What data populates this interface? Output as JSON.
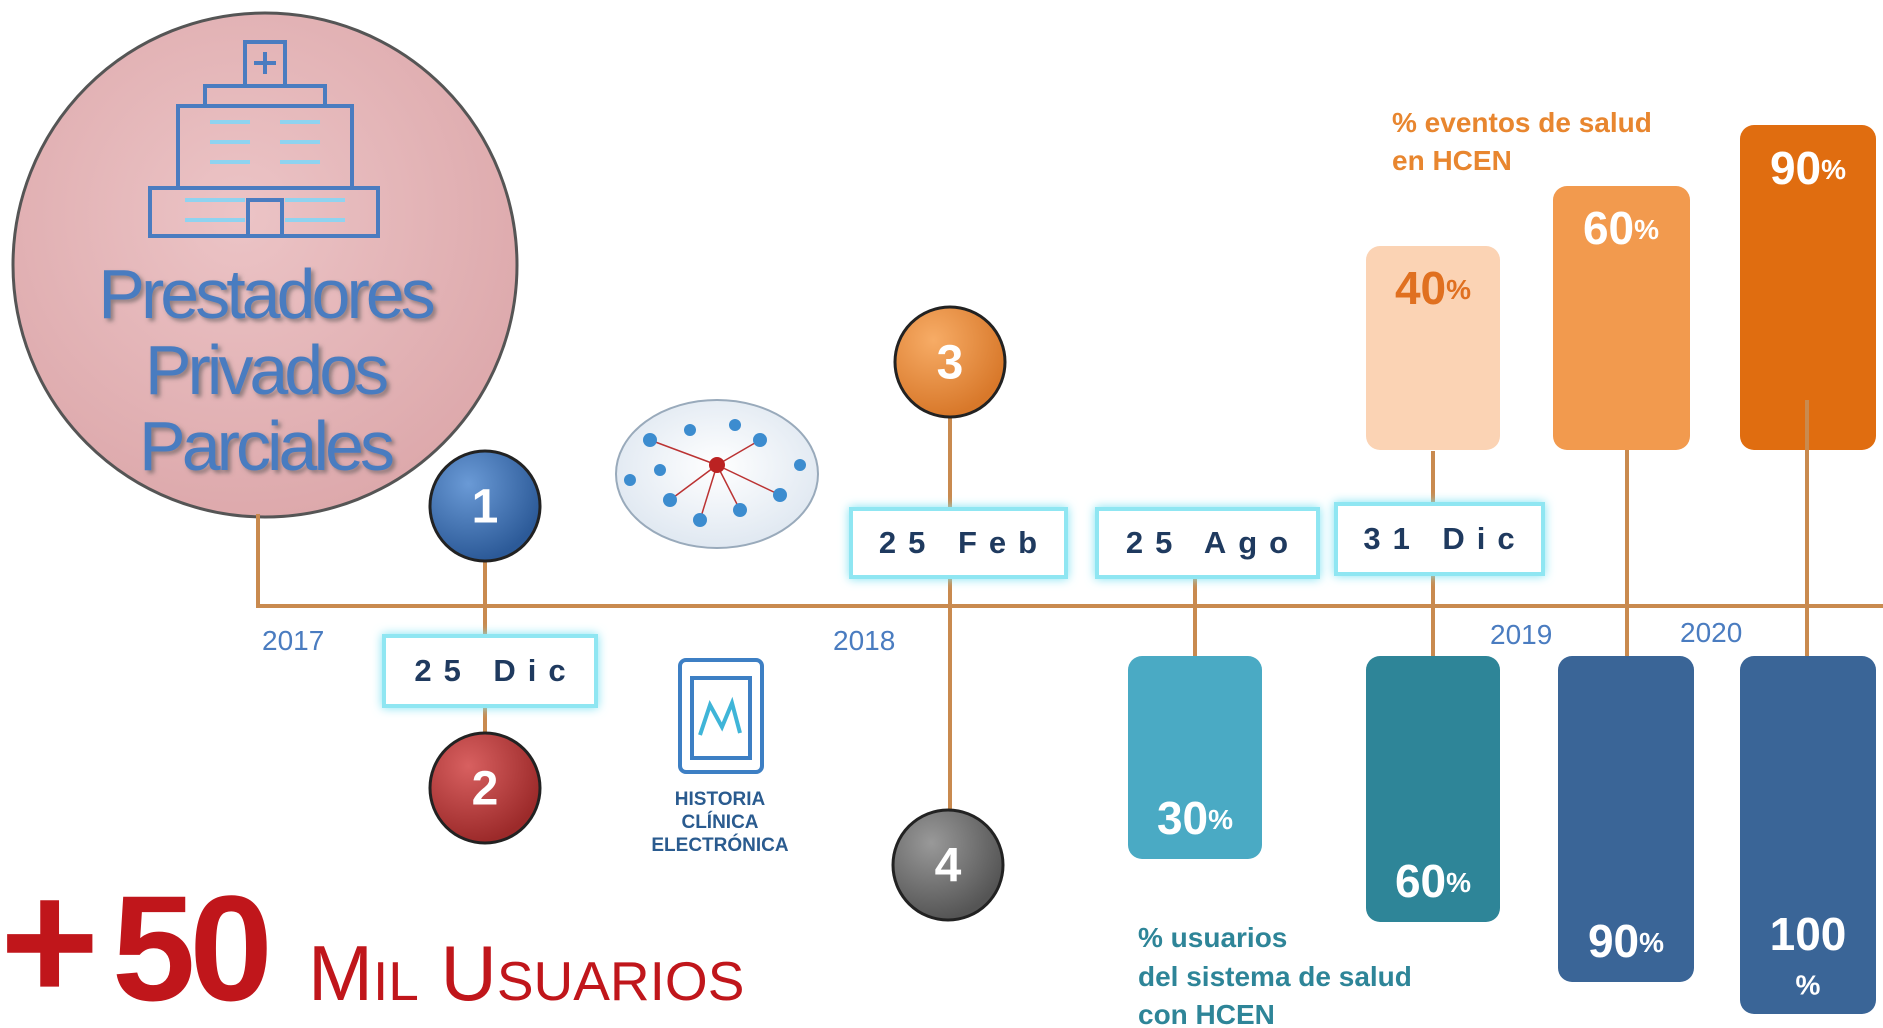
{
  "header": {
    "title_lines": [
      "Prestadores",
      "Privados",
      "Parciales"
    ]
  },
  "timeline": {
    "years": [
      "2017",
      "2018",
      "2019",
      "2020"
    ],
    "milestones": [
      "1",
      "2",
      "3",
      "4"
    ],
    "dates": [
      "25 Dic",
      "25 Feb",
      "25 Ago",
      "31 Dic"
    ]
  },
  "icon_label": [
    "HISTORIA",
    "CLÍNICA",
    "ELECTRÓNICA"
  ],
  "events": {
    "label_lines": [
      "% eventos de salud",
      "en HCEN"
    ],
    "bars": [
      {
        "value": "40",
        "unit": "%"
      },
      {
        "value": "60",
        "unit": "%"
      },
      {
        "value": "90",
        "unit": "%"
      }
    ]
  },
  "users": {
    "label_lines": [
      "% usuarios",
      "del sistema de salud",
      "con HCEN"
    ],
    "bars": [
      {
        "value": "30",
        "unit": "%"
      },
      {
        "value": "60",
        "unit": "%"
      },
      {
        "value": "90",
        "unit": "%"
      },
      {
        "value": "100",
        "unit": "%"
      }
    ]
  },
  "banner": {
    "plus": "+",
    "number": "50",
    "text": "Mil Usuarios"
  }
}
